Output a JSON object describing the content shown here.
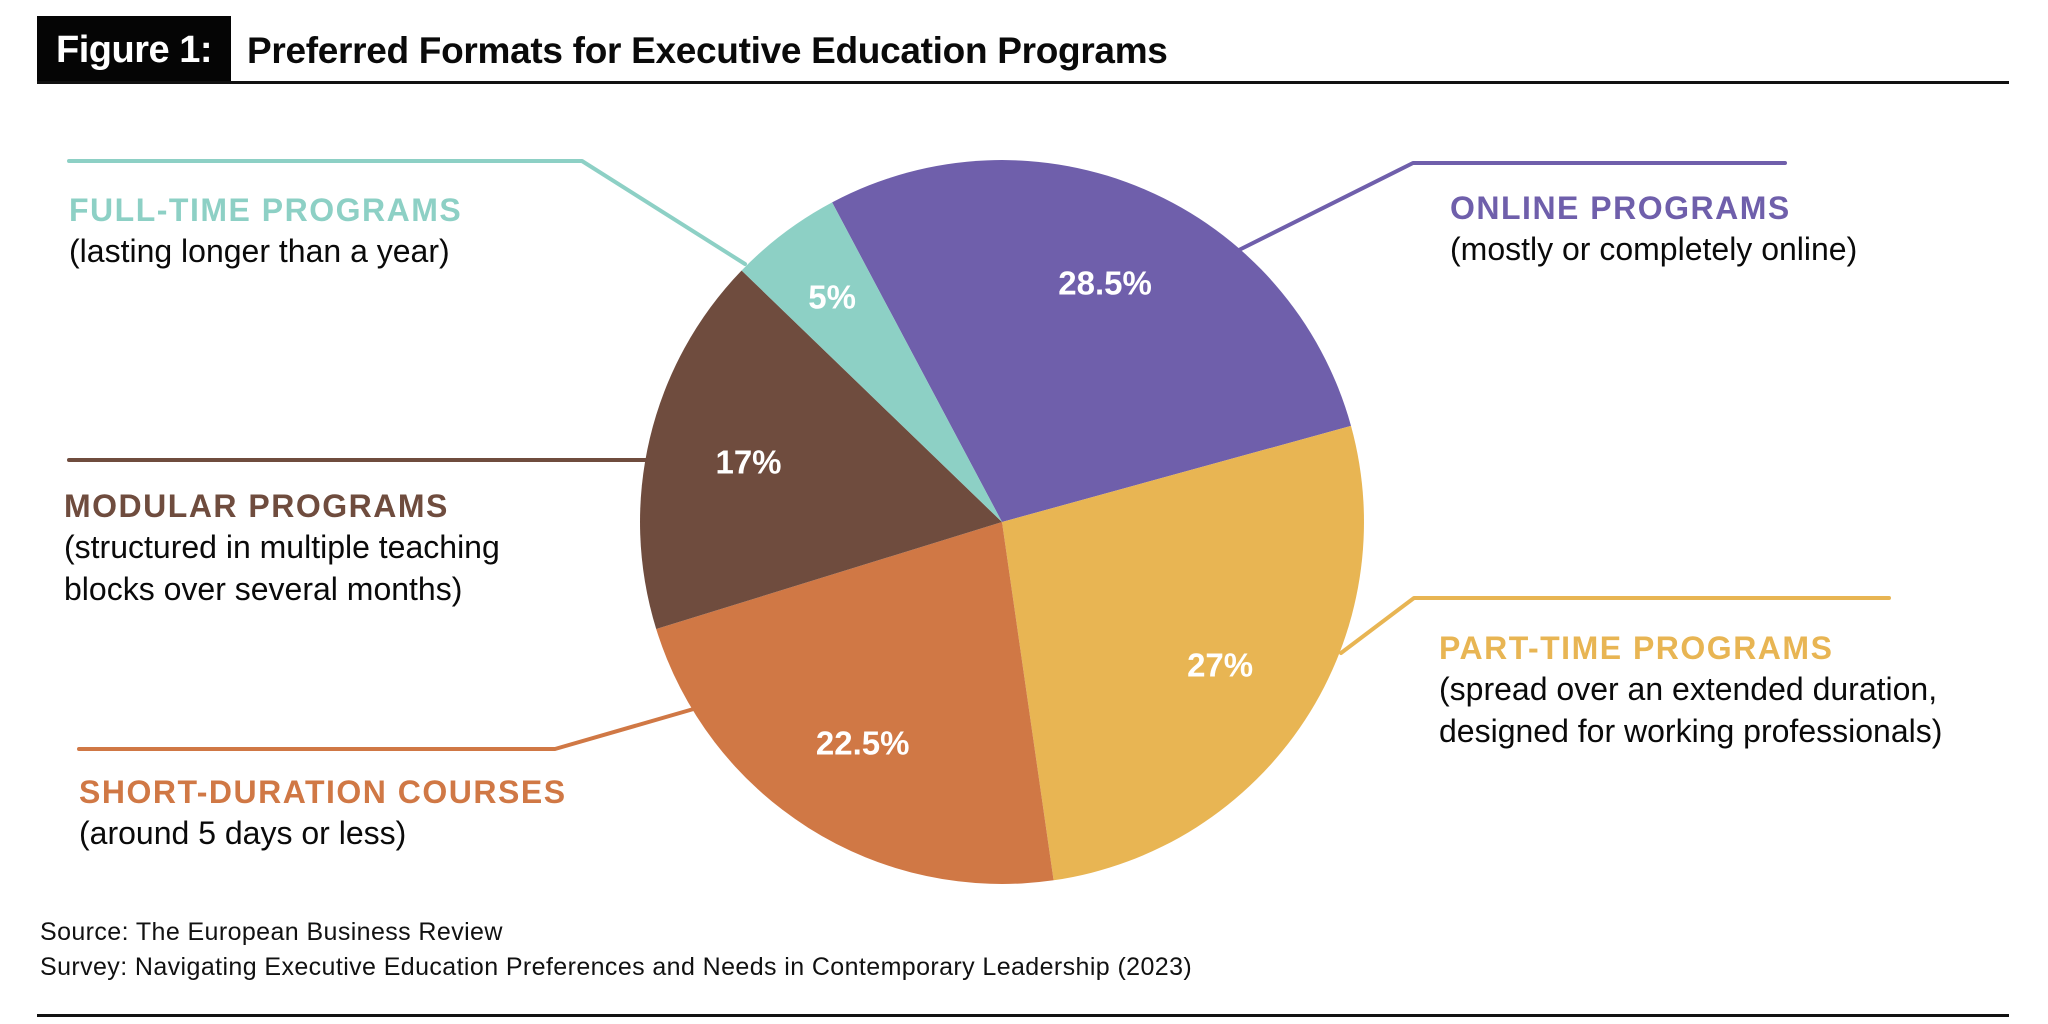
{
  "figure": {
    "badge": "Figure 1:",
    "title": "Preferred Formats for Executive Education Programs"
  },
  "chart_data": {
    "type": "pie",
    "title": "Preferred Formats for Executive Education Programs",
    "unit": "%",
    "slices": [
      {
        "key": "online",
        "name": "ONLINE PROGRAMS",
        "description": "(mostly or completely online)",
        "value": 28.5,
        "label": "28.5%",
        "color": "#6f5fab"
      },
      {
        "key": "part_time",
        "name": "PART-TIME PROGRAMS",
        "description": "(spread over an extended duration, designed for working professionals)",
        "description_lines": [
          "(spread over an extended duration,",
          "designed for working professionals)"
        ],
        "value": 27,
        "label": "27%",
        "color": "#e8b553"
      },
      {
        "key": "short_duration",
        "name": "SHORT-DURATION COURSES",
        "description": "(around 5 days or less)",
        "value": 22.5,
        "label": "22.5%",
        "color": "#d07845"
      },
      {
        "key": "modular",
        "name": "MODULAR PROGRAMS",
        "description": "(structured in multiple teaching blocks over several months)",
        "description_lines": [
          "(structured in multiple teaching",
          "blocks over several months)"
        ],
        "value": 17,
        "label": "17%",
        "color": "#6f4c3e"
      },
      {
        "key": "full_time",
        "name": "FULL-TIME PROGRAMS",
        "description": "(lasting longer than a year)",
        "value": 5,
        "label": "5%",
        "color": "#8dd0c5"
      }
    ],
    "start_angle_deg": -30,
    "direction": "clockwise"
  },
  "footer": {
    "source": "Source: The European Business Review",
    "survey": "Survey: Navigating Executive Education Preferences and Needs in Contemporary Leadership (2023)"
  }
}
